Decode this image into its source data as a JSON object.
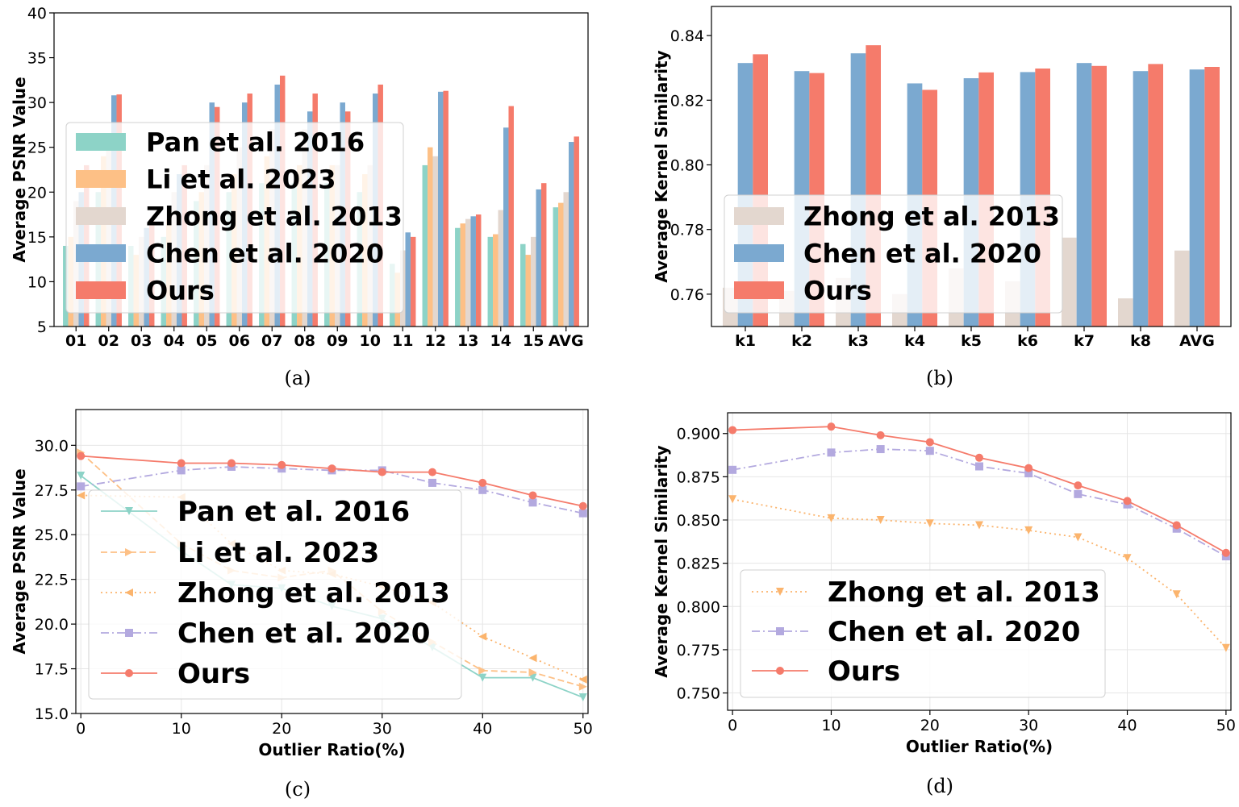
{
  "colors": {
    "pan": "#8dd3c7",
    "li": "#fdc086",
    "zhong": "#e3d7cf",
    "chen": "#7ba9d0",
    "ours": "#f57b6b",
    "chen_line": "#b3a9df",
    "zhong_line": "#fbb46d"
  },
  "chart_data": [
    {
      "id": "a",
      "type": "bar",
      "caption": "(a)",
      "title": "",
      "xlabel": "",
      "ylabel": "Average PSNR Value",
      "ylim": [
        5,
        40
      ],
      "yticks": [
        "5",
        "10",
        "15",
        "20",
        "25",
        "30",
        "35",
        "40"
      ],
      "grid": false,
      "legend_position": "center-left",
      "categories": [
        "01",
        "02",
        "03",
        "04",
        "05",
        "06",
        "07",
        "08",
        "09",
        "10",
        "11",
        "12",
        "13",
        "14",
        "15",
        "AVG"
      ],
      "series": [
        {
          "name": "Pan et al. 2016",
          "key": "pan",
          "values": [
            14,
            20,
            14,
            15,
            19,
            20,
            21,
            21,
            21,
            20,
            12,
            23,
            16,
            15,
            14.2,
            18.3
          ]
        },
        {
          "name": "Li et al. 2023",
          "key": "li",
          "values": [
            15,
            24,
            13,
            17,
            20,
            22,
            24,
            23,
            23,
            22,
            11,
            25,
            16.5,
            15.3,
            13,
            18.8
          ]
        },
        {
          "name": "Zhong et al. 2013",
          "key": "zhong",
          "values": [
            19,
            25,
            15,
            20,
            23,
            25,
            27,
            27,
            23,
            23,
            13.5,
            24,
            17,
            18,
            15,
            20
          ]
        },
        {
          "name": "Chen et al. 2020",
          "key": "chen",
          "values": [
            20,
            30.8,
            16,
            22,
            30,
            30,
            32,
            29,
            30,
            31,
            15.5,
            31.2,
            17.3,
            27.2,
            20.3,
            25.6
          ]
        },
        {
          "name": "Ours",
          "key": "ours",
          "values": [
            23,
            30.9,
            17,
            23,
            29.5,
            31,
            33,
            31,
            29,
            32,
            15,
            31.3,
            17.5,
            29.6,
            21,
            26.2
          ]
        }
      ]
    },
    {
      "id": "b",
      "type": "bar",
      "caption": "(b)",
      "title": "",
      "xlabel": "",
      "ylabel": "Average Kernel Similarity",
      "ylim": [
        0.75,
        0.849
      ],
      "yticks": [
        "0.76",
        "0.78",
        "0.80",
        "0.82",
        "0.84"
      ],
      "grid": false,
      "legend_position": "lower-left",
      "categories": [
        "k1",
        "k2",
        "k3",
        "k4",
        "k5",
        "k6",
        "k7",
        "k8",
        "AVG"
      ],
      "series": [
        {
          "name": "Zhong et al. 2013",
          "key": "zhong",
          "values": [
            0.762,
            0.761,
            0.765,
            0.76,
            0.768,
            0.764,
            0.7775,
            0.7587,
            0.7735
          ]
        },
        {
          "name": "Chen et al. 2020",
          "key": "chen",
          "values": [
            0.8315,
            0.829,
            0.8345,
            0.8252,
            0.8268,
            0.8287,
            0.8315,
            0.829,
            0.8295
          ]
        },
        {
          "name": "Ours",
          "key": "ours",
          "values": [
            0.8342,
            0.8284,
            0.837,
            0.8232,
            0.8286,
            0.8298,
            0.8306,
            0.8312,
            0.8303
          ]
        }
      ]
    },
    {
      "id": "c",
      "type": "line",
      "caption": "(c)",
      "title": "",
      "xlabel": "Outlier Ratio(%)",
      "ylabel": "Average PSNR Value",
      "xlim": [
        -0.5,
        50.5
      ],
      "ylim": [
        15,
        32
      ],
      "xticks": [
        "0",
        "10",
        "20",
        "30",
        "40",
        "50"
      ],
      "yticks": [
        "15.0",
        "17.5",
        "20.0",
        "22.5",
        "25.0",
        "27.5",
        "30.0"
      ],
      "grid": true,
      "legend_position": "lower-left",
      "x": [
        0,
        10,
        15,
        20,
        25,
        30,
        35,
        40,
        45,
        50
      ],
      "series": [
        {
          "name": "Pan et al. 2016",
          "key": "pan",
          "marker": "triangle-down",
          "dash": "",
          "values": [
            28.3,
            24.1,
            22.2,
            22.0,
            21.0,
            20.3,
            18.7,
            17.0,
            17.0,
            15.9
          ]
        },
        {
          "name": "Li et al. 2023",
          "key": "li",
          "marker": "triangle-right",
          "dash": "8 4",
          "values": [
            29.6,
            24.5,
            23.0,
            22.6,
            23.0,
            20.7,
            19.0,
            17.4,
            17.3,
            16.5
          ]
        },
        {
          "name": "Zhong et al. 2013",
          "key": "zhong_line",
          "marker": "triangle-left",
          "dash": "2 4",
          "values": [
            27.2,
            27.1,
            24.5,
            23.0,
            22.8,
            22.1,
            21.2,
            19.3,
            18.1,
            16.9
          ]
        },
        {
          "name": "Chen et al. 2020",
          "key": "chen_line",
          "marker": "square",
          "dash": "10 4 2 4",
          "values": [
            27.7,
            28.6,
            28.8,
            28.7,
            28.6,
            28.6,
            27.9,
            27.5,
            26.8,
            26.2
          ]
        },
        {
          "name": "Ours",
          "key": "ours",
          "marker": "circle",
          "dash": "",
          "values": [
            29.4,
            29.0,
            29.0,
            28.9,
            28.7,
            28.5,
            28.5,
            27.9,
            27.2,
            26.6
          ]
        }
      ]
    },
    {
      "id": "d",
      "type": "line",
      "caption": "(d)",
      "title": "",
      "xlabel": "Outlier Ratio(%)",
      "ylabel": "Average Kernel Similarity",
      "xlim": [
        -0.5,
        50.5
      ],
      "ylim": [
        0.74,
        0.912
      ],
      "xticks": [
        "0",
        "10",
        "20",
        "30",
        "40",
        "50"
      ],
      "yticks": [
        "0.750",
        "0.775",
        "0.800",
        "0.825",
        "0.850",
        "0.875",
        "0.900"
      ],
      "grid": true,
      "legend_position": "lower-left",
      "x": [
        0,
        10,
        15,
        20,
        25,
        30,
        35,
        40,
        45,
        50
      ],
      "series": [
        {
          "name": "Zhong et al. 2013",
          "key": "zhong_line",
          "marker": "triangle-down",
          "dash": "2 4",
          "values": [
            0.862,
            0.851,
            0.85,
            0.848,
            0.847,
            0.844,
            0.84,
            0.828,
            0.807,
            0.776
          ]
        },
        {
          "name": "Chen et al. 2020",
          "key": "chen_line",
          "marker": "square",
          "dash": "10 4 2 4",
          "values": [
            0.879,
            0.889,
            0.891,
            0.89,
            0.881,
            0.877,
            0.865,
            0.859,
            0.845,
            0.829
          ]
        },
        {
          "name": "Ours",
          "key": "ours",
          "marker": "circle",
          "dash": "",
          "values": [
            0.902,
            0.904,
            0.899,
            0.895,
            0.886,
            0.88,
            0.87,
            0.861,
            0.847,
            0.831
          ]
        }
      ]
    }
  ]
}
